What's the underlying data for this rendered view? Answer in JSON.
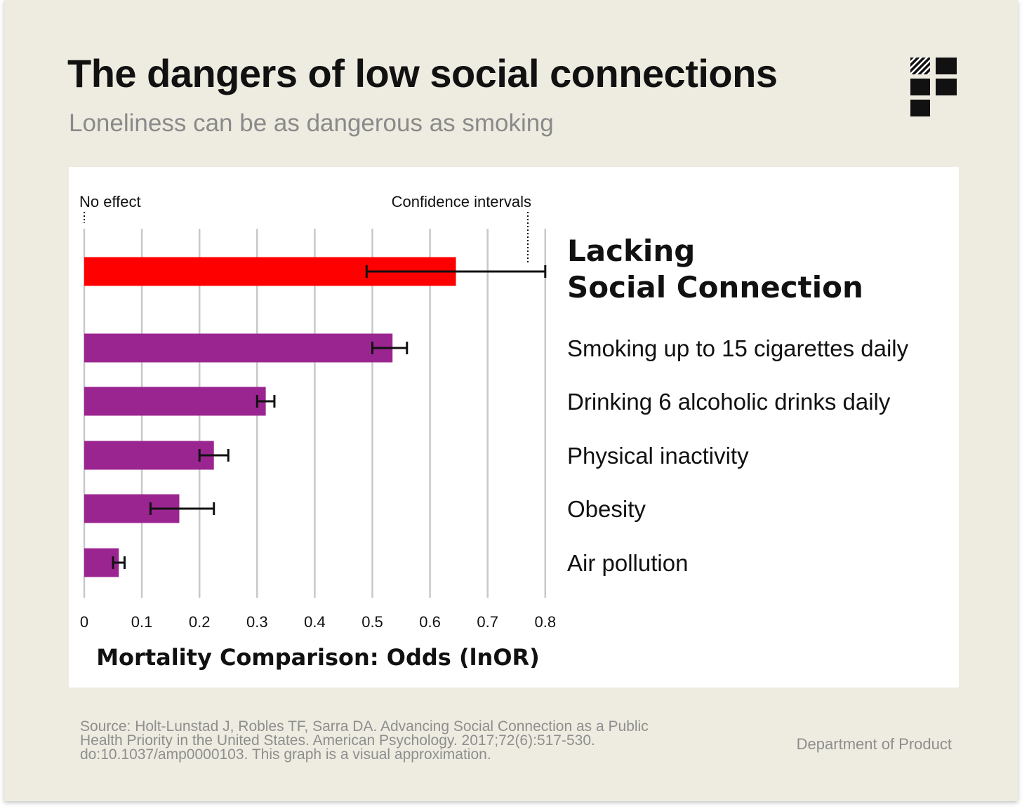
{
  "header": {
    "title": "The dangers of low social connections",
    "subtitle": "Loneliness can be as dangerous as smoking"
  },
  "chart_data": {
    "type": "bar",
    "orientation": "horizontal",
    "xlabel": "Mortality Comparison: Odds (lnOR)",
    "xlim": [
      0,
      0.8
    ],
    "xticks": [
      0,
      0.1,
      0.2,
      0.3,
      0.4,
      0.5,
      0.6,
      0.7,
      0.8
    ],
    "xtick_labels": [
      "0",
      "0.1",
      "0.2",
      "0.3",
      "0.4",
      "0.5",
      "0.6",
      "0.7",
      "0.8"
    ],
    "grid": "vertical",
    "annotations": {
      "no_effect": "No effect",
      "confidence_intervals": "Confidence intervals"
    },
    "categories": [
      "Lacking Social Connection",
      "Smoking up to 15 cigarettes daily",
      "Drinking 6 alcoholic drinks daily",
      "Physical inactivity",
      "Obesity",
      "Air pollution"
    ],
    "category_label_lines": [
      [
        "Lacking",
        "Social Connection"
      ],
      [
        "Smoking up to 15 cigarettes daily"
      ],
      [
        "Drinking 6 alcoholic drinks daily"
      ],
      [
        "Physical inactivity"
      ],
      [
        "Obesity"
      ],
      [
        "Air pollution"
      ]
    ],
    "values": [
      0.645,
      0.535,
      0.315,
      0.225,
      0.165,
      0.06
    ],
    "ci_low": [
      0.49,
      0.5,
      0.3,
      0.2,
      0.115,
      0.05
    ],
    "ci_high": [
      0.8,
      0.56,
      0.33,
      0.25,
      0.225,
      0.07
    ],
    "colors": [
      "#ff0000",
      "#9b2590",
      "#9b2590",
      "#9b2590",
      "#9b2590",
      "#9b2590"
    ],
    "highlighted": [
      true,
      false,
      false,
      false,
      false,
      false
    ]
  },
  "footer": {
    "source_lines": [
      "Source: Holt-Lunstad J, Robles TF, Sarra DA. Advancing Social Connection as a Public",
      "Health Priority in the United States. American Psychology. 2017;72(6):517-530.",
      "do:10.1037/amp0000103. This graph is a visual approximation."
    ],
    "brand": "Department of Product"
  }
}
